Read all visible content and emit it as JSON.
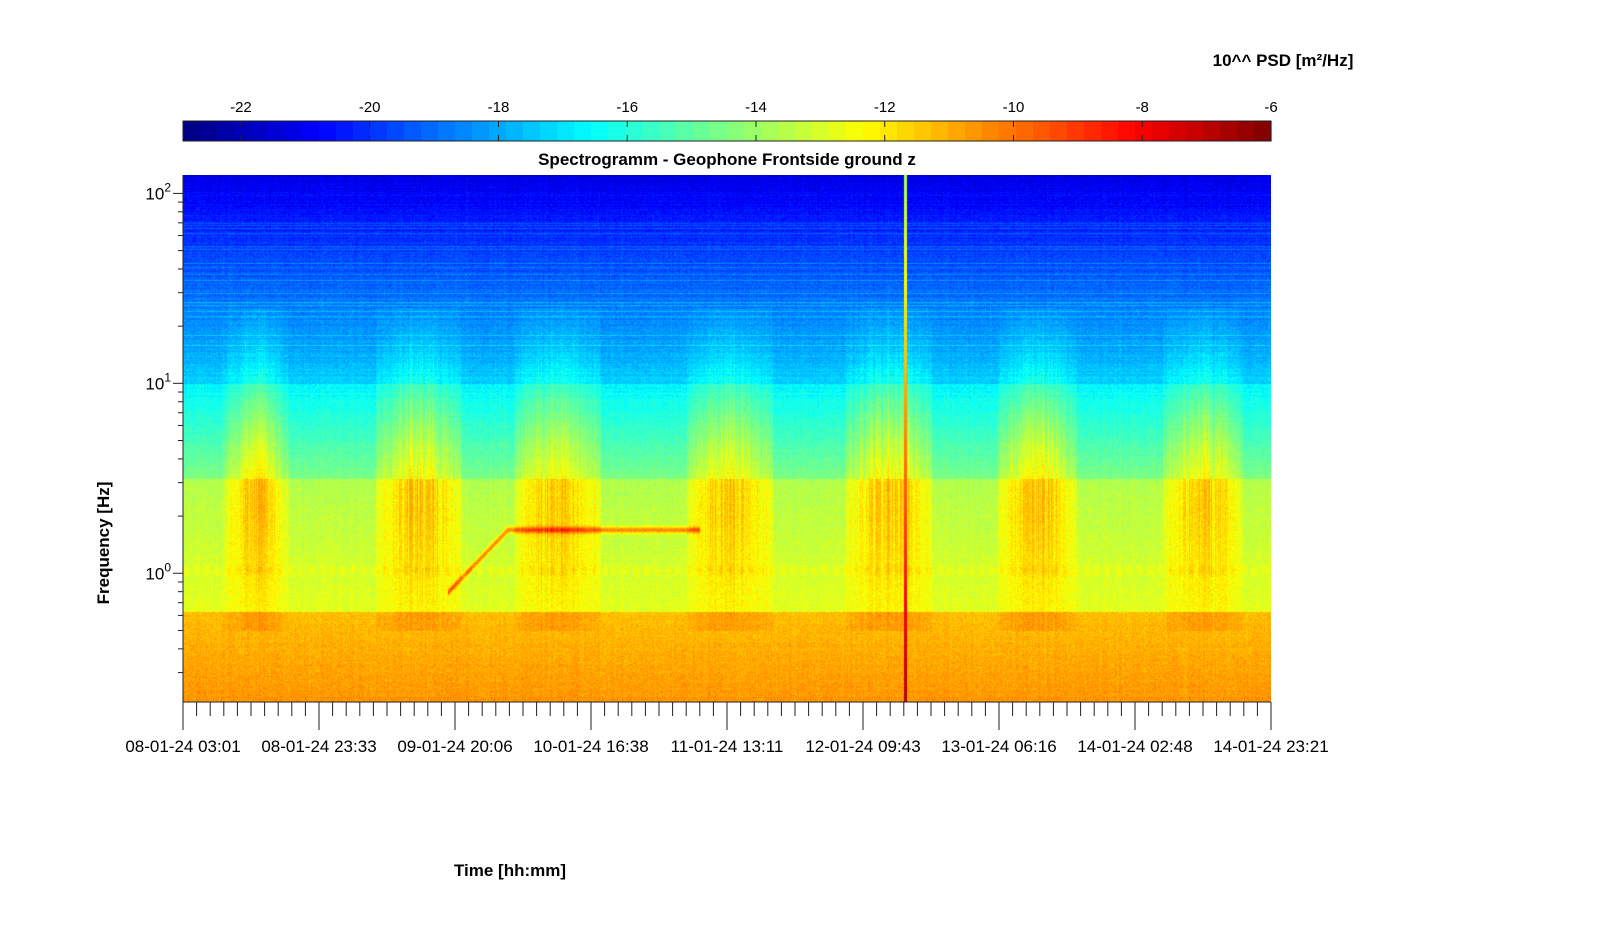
{
  "chart_data": {
    "type": "heatmap",
    "title": "Spectrogramm - Geophone Frontside ground z",
    "xlabel": "Time [hh:mm]",
    "ylabel": "Frequency [Hz]",
    "colorbar_label": "10^^ PSD [m²/Hz]",
    "colormap": "jet",
    "color_range": [
      -22.9,
      -6
    ],
    "colorbar_ticks": [
      "-22",
      "-20",
      "-18",
      "-16",
      "-14",
      "-12",
      "-10",
      "-8",
      "-6"
    ],
    "colorbar_tick_values": [
      -22,
      -20,
      -18,
      -16,
      -14,
      -12,
      -10,
      -8,
      -6
    ],
    "x_tick_labels": [
      "08-01-24 03:01",
      "08-01-24 23:33",
      "09-01-24 20:06",
      "10-01-24 16:38",
      "11-01-24 13:11",
      "12-01-24 09:43",
      "13-01-24 06:16",
      "14-01-24 02:48",
      "14-01-24 23:21"
    ],
    "x_range_hours": [
      0,
      164.33
    ],
    "y_scale": "log",
    "y_range_hz": [
      0.21,
      125
    ],
    "y_tick_labels": [
      {
        "base": "10",
        "exp": "2",
        "value": 100
      },
      {
        "base": "10",
        "exp": "1",
        "value": 10
      },
      {
        "base": "10",
        "exp": "0",
        "value": 1
      }
    ],
    "features": [
      {
        "name": "ramp_line",
        "start_hour": 40,
        "end_hour": 49,
        "f_start_hz": 0.8,
        "f_end_hz": 1.7
      },
      {
        "name": "steady_line",
        "start_hour": 49,
        "end_hour": 78,
        "f_hz": 1.7
      },
      {
        "name": "spike",
        "hour": 109,
        "psd_log10": -8.5
      }
    ],
    "activity_blocks_hours": [
      [
        8,
        14
      ],
      [
        31,
        40
      ],
      [
        52,
        61
      ],
      [
        78,
        87
      ],
      [
        102,
        111
      ],
      [
        125,
        133
      ],
      [
        150,
        158
      ]
    ]
  }
}
